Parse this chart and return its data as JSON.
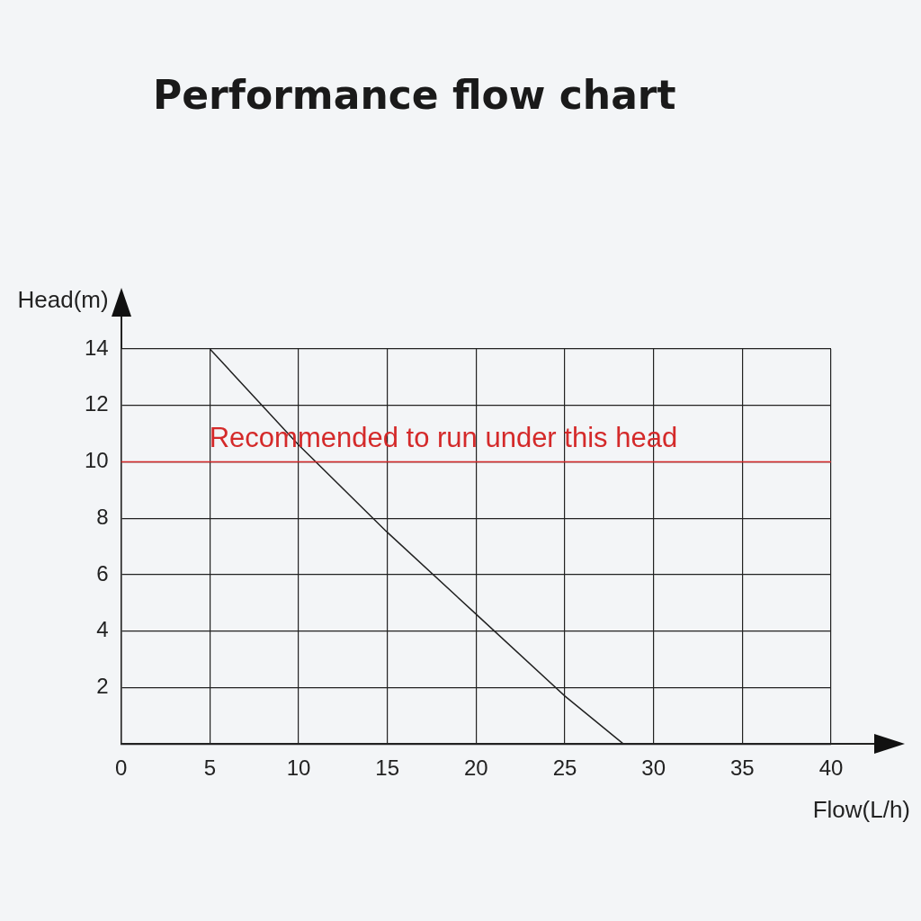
{
  "chart_data": {
    "type": "line",
    "title": "Performance flow chart",
    "xlabel": "Flow(L/h)",
    "ylabel": "Head(m)",
    "x": [
      5,
      10,
      15,
      20,
      25,
      28.3
    ],
    "series": [
      {
        "color": "#222222",
        "values": [
          14,
          10.6,
          7.5,
          4.6,
          1.7,
          0
        ]
      }
    ],
    "xlim": [
      0,
      40
    ],
    "xticks": [
      0,
      5,
      10,
      15,
      20,
      25,
      30,
      35,
      40
    ],
    "ylim": [
      0,
      14
    ],
    "yticks": [
      {
        "value": 0,
        "label": null
      },
      2,
      4,
      6,
      8,
      10,
      12,
      14
    ],
    "ref_lines": [
      {
        "axis": "y",
        "value": 10,
        "label": "Recommended to run under this head",
        "color": "#d42a2a"
      }
    ],
    "grid": true,
    "legend": false,
    "marker": "none",
    "line_style": "solid"
  }
}
